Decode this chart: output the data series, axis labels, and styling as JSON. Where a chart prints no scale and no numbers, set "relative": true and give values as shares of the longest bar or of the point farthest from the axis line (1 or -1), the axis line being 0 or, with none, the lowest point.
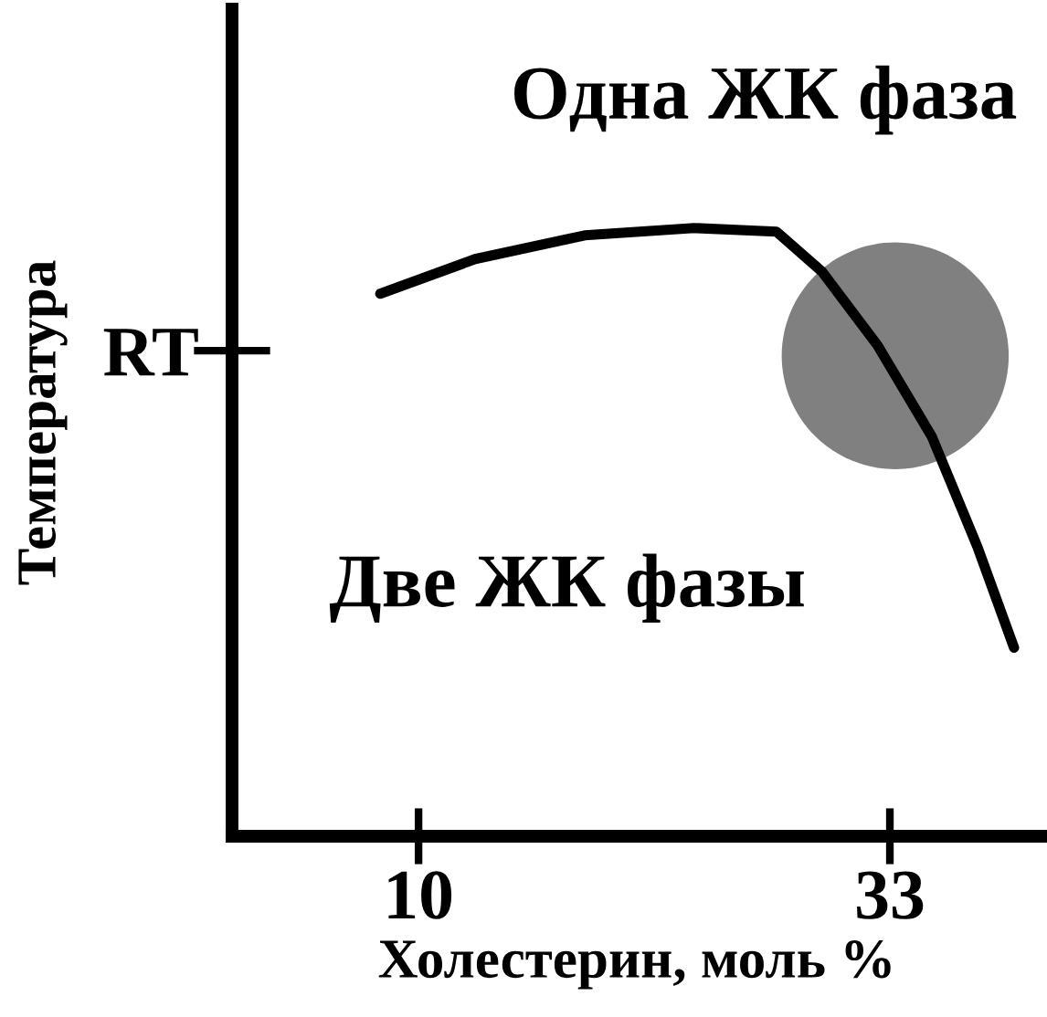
{
  "chart_data": {
    "type": "line",
    "relative": true,
    "xlabel": "Холестерин, моль %",
    "ylabel": "Температура",
    "x": [
      8.13,
      12.76,
      18.11,
      23.46,
      27.47,
      29.7,
      32.4,
      35.05,
      37.27,
      39.06
    ],
    "xlim": [
      0.9,
      40.4
    ],
    "xticks": [
      10,
      33
    ],
    "series": [
      {
        "color": "#000000",
        "values": [
          0.892,
          0.949,
          0.988,
          1,
          0.994,
          0.928,
          0.807,
          0.657,
          0.476,
          0.31
        ]
      },
      {
        "type": "scatter",
        "color": "#808080",
        "x": [
          33.26
        ],
        "values": [
          0.79
        ]
      }
    ],
    "annotations": [
      "Одна ЖК фаза",
      "Две ЖК фазы",
      "RT"
    ],
    "grid": false
  }
}
